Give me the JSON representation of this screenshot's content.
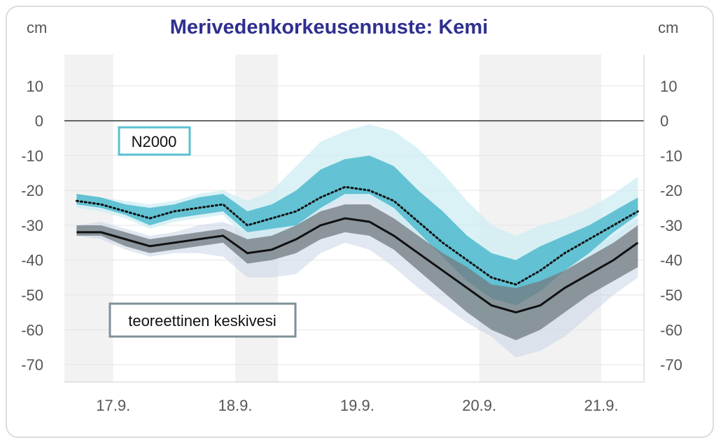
{
  "chart_data": {
    "type": "area",
    "title": "Merivedenkorkeusennuste: Kemi",
    "ylabel_left": "cm",
    "ylabel_right": "cm",
    "ylim": [
      -75,
      19
    ],
    "yticks": [
      10,
      0,
      -10,
      -20,
      -30,
      -40,
      -50,
      -60,
      -70
    ],
    "xlim": [
      16.6,
      21.35
    ],
    "xticks": [
      {
        "x": 17.0,
        "label": "17.9."
      },
      {
        "x": 18.0,
        "label": "18.9."
      },
      {
        "x": 19.0,
        "label": "19.9."
      },
      {
        "x": 20.0,
        "label": "20.9."
      },
      {
        "x": 21.0,
        "label": "21.9."
      }
    ],
    "night_bands": [
      [
        16.6,
        17.0
      ],
      [
        18.0,
        18.35
      ],
      [
        20.0,
        21.0
      ]
    ],
    "reference_line": 0,
    "x": [
      16.7,
      16.9,
      17.1,
      17.3,
      17.5,
      17.7,
      17.9,
      18.1,
      18.3,
      18.5,
      18.7,
      18.9,
      19.1,
      19.3,
      19.5,
      19.7,
      19.9,
      20.1,
      20.3,
      20.5,
      20.7,
      20.9,
      21.1,
      21.3
    ],
    "series": [
      {
        "name": "N2000",
        "style": "dotted",
        "values": [
          -23,
          -24,
          -26,
          -28,
          -26,
          -25,
          -24,
          -30,
          -28,
          -26,
          -22,
          -19,
          -20,
          -23,
          -29,
          -35,
          -40,
          -45,
          -47,
          -43,
          -38,
          -34,
          -30,
          -26
        ]
      },
      {
        "name": "N2000 outer band",
        "lower": [
          -25,
          -26,
          -28,
          -31,
          -29,
          -28,
          -27,
          -34,
          -33,
          -33,
          -26,
          -22,
          -23,
          -27,
          -36,
          -44,
          -54,
          -60,
          -62,
          -55,
          -47,
          -41,
          -35,
          -29
        ],
        "upper": [
          -21,
          -22,
          -23,
          -24,
          -23,
          -21,
          -20,
          -23,
          -20,
          -13,
          -6,
          -3,
          -1,
          -3,
          -8,
          -15,
          -23,
          -30,
          -33,
          -30,
          -28,
          -25,
          -21,
          -16
        ]
      },
      {
        "name": "N2000 inner band",
        "lower": [
          -24,
          -25,
          -27,
          -30,
          -28,
          -27,
          -26,
          -32,
          -31,
          -30,
          -25,
          -21,
          -21,
          -25,
          -32,
          -39,
          -46,
          -51,
          -53,
          -49,
          -43,
          -38,
          -32,
          -27
        ],
        "upper": [
          -21,
          -22,
          -24,
          -25,
          -24,
          -22,
          -21,
          -26,
          -24,
          -20,
          -14,
          -11,
          -10,
          -13,
          -20,
          -26,
          -33,
          -38,
          -40,
          -36,
          -33,
          -30,
          -26,
          -22
        ]
      },
      {
        "name": "teoreettinen keskivesi",
        "style": "solid",
        "values": [
          -32,
          -32,
          -34,
          -36,
          -35,
          -34,
          -33,
          -38,
          -37,
          -34,
          -30,
          -28,
          -29,
          -33,
          -38,
          -43,
          -48,
          -53,
          -55,
          -53,
          -48,
          -44,
          -40,
          -35
        ]
      },
      {
        "name": "teoreettinen keskivesi outer band",
        "lower": [
          -33,
          -34,
          -37,
          -39,
          -38,
          -38,
          -39,
          -45,
          -45,
          -44,
          -38,
          -35,
          -37,
          -42,
          -48,
          -53,
          -58,
          -62,
          -68,
          -66,
          -62,
          -56,
          -50,
          -45
        ],
        "upper": [
          -30,
          -29,
          -31,
          -33,
          -32,
          -30,
          -29,
          -32,
          -31,
          -27,
          -23,
          -21,
          -20,
          -22,
          -27,
          -32,
          -38,
          -43,
          -45,
          -43,
          -40,
          -37,
          -33,
          -28
        ]
      },
      {
        "name": "teoreettinen keskivesi inner band",
        "lower": [
          -33,
          -33,
          -36,
          -38,
          -37,
          -36,
          -35,
          -41,
          -40,
          -38,
          -34,
          -32,
          -33,
          -37,
          -43,
          -49,
          -55,
          -60,
          -63,
          -60,
          -55,
          -50,
          -46,
          -42
        ],
        "upper": [
          -30,
          -30,
          -32,
          -34,
          -33,
          -32,
          -31,
          -34,
          -33,
          -30,
          -26,
          -24,
          -24,
          -28,
          -33,
          -38,
          -42,
          -47,
          -48,
          -46,
          -43,
          -39,
          -35,
          -30
        ]
      }
    ],
    "legend": [
      {
        "label": "N2000",
        "color": "#5bc0d2"
      },
      {
        "label": "teoreettinen keskivesi",
        "color": "#7f8f98"
      }
    ],
    "colors": {
      "n2000_outer": "#cdeef3",
      "n2000_inner": "#55bccf",
      "tk_outer": "#c9d6e6",
      "tk_inner": "#737e84",
      "night": "#f2f2f2",
      "title": "#2f2f8f"
    }
  }
}
